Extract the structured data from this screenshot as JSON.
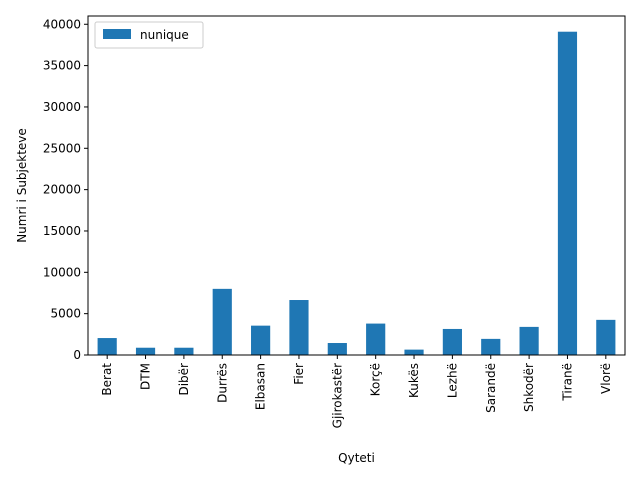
{
  "chart_data": {
    "type": "bar",
    "categories": [
      "Berat",
      "DTM",
      "Dibër",
      "Durrës",
      "Elbasan",
      "Fier",
      "Gjirokastër",
      "Korçë",
      "Kukës",
      "Lezhë",
      "Sarandë",
      "Shkodër",
      "Tiranë",
      "Vlorë"
    ],
    "series": [
      {
        "name": "nunique",
        "color": "#1f77b4",
        "values": [
          2050,
          880,
          880,
          8000,
          3550,
          6650,
          1450,
          3800,
          650,
          3150,
          1950,
          3400,
          39100,
          4250
        ]
      }
    ],
    "xlabel": "Qyteti",
    "ylabel": "Numri i Subjekteve",
    "ylim": [
      0,
      41000
    ],
    "yticks": [
      0,
      5000,
      10000,
      15000,
      20000,
      25000,
      30000,
      35000,
      40000
    ],
    "grid": false,
    "legend_position": "top-left"
  }
}
